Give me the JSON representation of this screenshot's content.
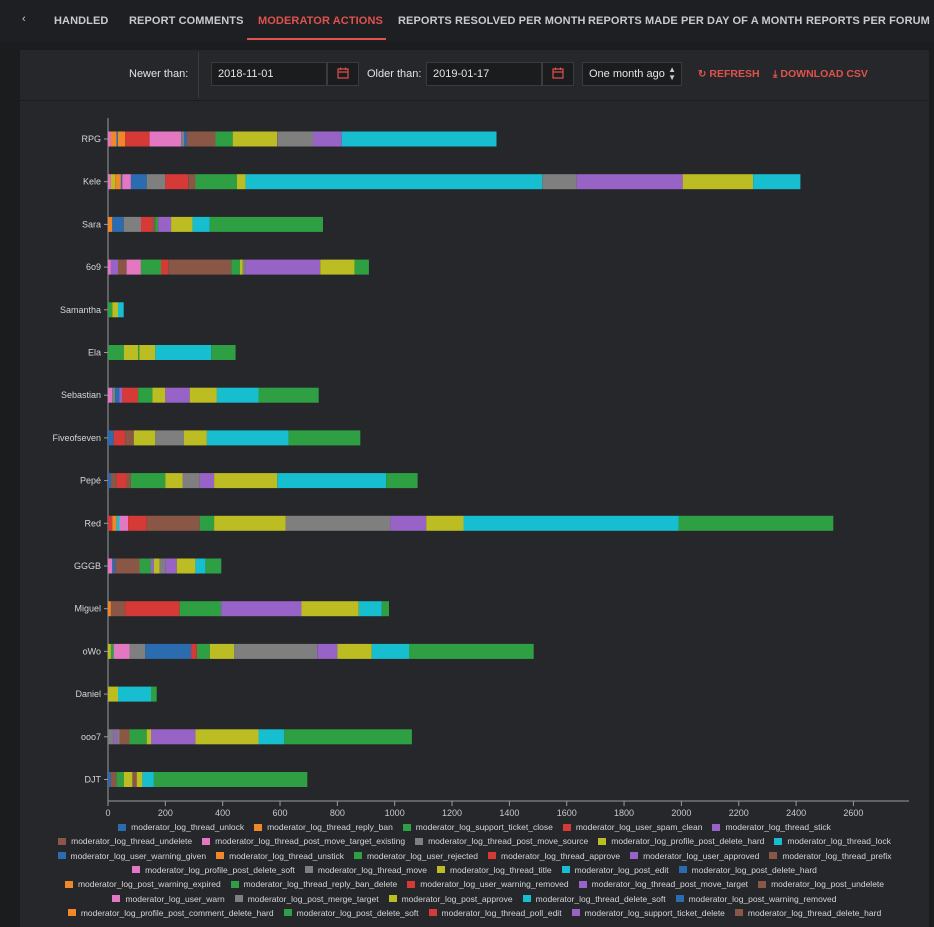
{
  "tabs": {
    "scroll_left": "‹",
    "items": [
      {
        "label": "HANDLED",
        "active": false
      },
      {
        "label": "REPORT COMMENTS",
        "active": false
      },
      {
        "label": "MODERATOR ACTIONS",
        "active": true
      },
      {
        "label": "REPORTS RESOLVED PER MONTH",
        "active": false
      },
      {
        "label": "REPORTS MADE PER DAY OF A MONTH",
        "active": false
      },
      {
        "label": "REPORTS PER FORUM",
        "active": false
      }
    ]
  },
  "filters": {
    "newer_label": "Newer than:",
    "newer_value": "2018-11-01",
    "older_label": "Older than:",
    "older_value": "2019-01-17",
    "range_value": "One month ago",
    "refresh_label": "REFRESH",
    "download_label": "DOWNLOAD CSV"
  },
  "colors": {
    "accent": "#e0524d",
    "background": "#1b1c1e",
    "panel": "#26272a"
  },
  "icons": [
    "calendar-icon",
    "refresh-icon",
    "download-icon",
    "chevron-left-icon",
    "caret-icon"
  ],
  "chart_data": {
    "type": "bar",
    "orientation": "horizontal",
    "stacked": true,
    "xlim": [
      0,
      2800
    ],
    "xticks": [
      0,
      200,
      400,
      600,
      800,
      1000,
      1200,
      1400,
      1600,
      1800,
      2000,
      2200,
      2400,
      2600
    ],
    "grid": false,
    "legend_position": "bottom",
    "categories": [
      "RPG",
      "Kele",
      "Sara",
      "6o9",
      "Samantha",
      "Ela",
      "Sebastian",
      "Fiveofseven",
      "Pepé",
      "Red",
      "GGGB",
      "Miguel",
      "oWo",
      "Daniel",
      "ooo7",
      "DJT"
    ],
    "legend": [
      {
        "name": "moderator_log_thread_unlock",
        "color": "#2b6cb0"
      },
      {
        "name": "moderator_log_thread_reply_ban",
        "color": "#f0882a"
      },
      {
        "name": "moderator_log_support_ticket_close",
        "color": "#2ea043"
      },
      {
        "name": "moderator_log_user_spam_clean",
        "color": "#d63a36"
      },
      {
        "name": "moderator_log_thread_stick",
        "color": "#9863c6"
      },
      {
        "name": "moderator_log_thread_undelete",
        "color": "#8a5747"
      },
      {
        "name": "moderator_log_thread_post_move_target_existing",
        "color": "#e377c2"
      },
      {
        "name": "moderator_log_thread_post_move_source",
        "color": "#7f7f7f"
      },
      {
        "name": "moderator_log_profile_post_delete_hard",
        "color": "#bcbd22"
      },
      {
        "name": "moderator_log_thread_lock",
        "color": "#17becf"
      },
      {
        "name": "moderator_log_user_warning_given",
        "color": "#2b6cb0"
      },
      {
        "name": "moderator_log_thread_unstick",
        "color": "#f0882a"
      },
      {
        "name": "moderator_log_user_rejected",
        "color": "#2ea043"
      },
      {
        "name": "moderator_log_thread_approve",
        "color": "#d63a36"
      },
      {
        "name": "moderator_log_user_approved",
        "color": "#9863c6"
      },
      {
        "name": "moderator_log_thread_prefix",
        "color": "#8a5747"
      },
      {
        "name": "moderator_log_profile_post_delete_soft",
        "color": "#e377c2"
      },
      {
        "name": "moderator_log_thread_move",
        "color": "#7f7f7f"
      },
      {
        "name": "moderator_log_thread_title",
        "color": "#bcbd22"
      },
      {
        "name": "moderator_log_post_edit",
        "color": "#17becf"
      },
      {
        "name": "moderator_log_post_delete_hard",
        "color": "#2b6cb0"
      },
      {
        "name": "moderator_log_post_warning_expired",
        "color": "#f0882a"
      },
      {
        "name": "moderator_log_thread_reply_ban_delete",
        "color": "#2ea043"
      },
      {
        "name": "moderator_log_user_warning_removed",
        "color": "#d63a36"
      },
      {
        "name": "moderator_log_thread_post_move_target",
        "color": "#9863c6"
      },
      {
        "name": "moderator_log_post_undelete",
        "color": "#8a5747"
      },
      {
        "name": "moderator_log_user_warn",
        "color": "#e377c2"
      },
      {
        "name": "moderator_log_post_merge_target",
        "color": "#7f7f7f"
      },
      {
        "name": "moderator_log_post_approve",
        "color": "#bcbd22"
      },
      {
        "name": "moderator_log_thread_delete_soft",
        "color": "#17becf"
      },
      {
        "name": "moderator_log_post_warning_removed",
        "color": "#2b6cb0"
      },
      {
        "name": "moderator_log_profile_post_comment_delete_hard",
        "color": "#f0882a"
      },
      {
        "name": "moderator_log_post_delete_soft",
        "color": "#2ea043"
      },
      {
        "name": "moderator_log_thread_poll_edit",
        "color": "#d63a36"
      },
      {
        "name": "moderator_log_support_ticket_delete",
        "color": "#9863c6"
      },
      {
        "name": "moderator_log_thread_delete_hard",
        "color": "#8a5747"
      }
    ],
    "stacks": [
      [
        [
          "#e377c2",
          10
        ],
        [
          "#f0882a",
          20
        ],
        [
          "#2b6cb0",
          5
        ],
        [
          "#f0882a",
          25
        ],
        [
          "#d63a36",
          85
        ],
        [
          "#e377c2",
          110
        ],
        [
          "#7f7f7f",
          10
        ],
        [
          "#2b6cb0",
          10
        ],
        [
          "#8a5747",
          100
        ],
        [
          "#2ea043",
          60
        ],
        [
          "#bcbd22",
          155
        ],
        [
          "#7f7f7f",
          125
        ],
        [
          "#9863c6",
          100
        ],
        [
          "#17becf",
          540
        ]
      ],
      [
        [
          "#e377c2",
          10
        ],
        [
          "#bcbd22",
          15
        ],
        [
          "#f0882a",
          20
        ],
        [
          "#2b6cb0",
          5
        ],
        [
          "#e377c2",
          30
        ],
        [
          "#2b6cb0",
          55
        ],
        [
          "#7f7f7f",
          65
        ],
        [
          "#d63a36",
          80
        ],
        [
          "#8a5747",
          25
        ],
        [
          "#2ea043",
          145
        ],
        [
          "#bcbd22",
          30
        ],
        [
          "#17becf",
          1035
        ],
        [
          "#7f7f7f",
          120
        ],
        [
          "#9863c6",
          370
        ],
        [
          "#bcbd22",
          245
        ],
        [
          "#17becf",
          165
        ]
      ],
      [
        [
          "#f0882a",
          15
        ],
        [
          "#2b6cb0",
          40
        ],
        [
          "#7f7f7f",
          60
        ],
        [
          "#d63a36",
          40
        ],
        [
          "#8a5747",
          10
        ],
        [
          "#2ea043",
          10
        ],
        [
          "#9863c6",
          45
        ],
        [
          "#bcbd22",
          75
        ],
        [
          "#17becf",
          60
        ],
        [
          "#2ea043",
          395
        ]
      ],
      [
        [
          "#e377c2",
          10
        ],
        [
          "#9863c6",
          25
        ],
        [
          "#8a5747",
          30
        ],
        [
          "#e377c2",
          50
        ],
        [
          "#2ea043",
          70
        ],
        [
          "#d63a36",
          25
        ],
        [
          "#8a5747",
          220
        ],
        [
          "#2ea043",
          30
        ],
        [
          "#bcbd22",
          10
        ],
        [
          "#7f7f7f",
          10
        ],
        [
          "#9863c6",
          260
        ],
        [
          "#bcbd22",
          120
        ],
        [
          "#2ea043",
          50
        ]
      ],
      [
        [
          "#2ea043",
          15
        ],
        [
          "#bcbd22",
          20
        ],
        [
          "#17becf",
          20
        ]
      ],
      [
        [
          "#2ea043",
          55
        ],
        [
          "#bcbd22",
          50
        ],
        [
          "#2ea043",
          5
        ],
        [
          "#bcbd22",
          55
        ],
        [
          "#17becf",
          195
        ],
        [
          "#2ea043",
          85
        ]
      ],
      [
        [
          "#e377c2",
          15
        ],
        [
          "#7f7f7f",
          10
        ],
        [
          "#2b6cb0",
          15
        ],
        [
          "#9863c6",
          10
        ],
        [
          "#d63a36",
          55
        ],
        [
          "#2ea043",
          50
        ],
        [
          "#bcbd22",
          45
        ],
        [
          "#9863c6",
          85
        ],
        [
          "#bcbd22",
          95
        ],
        [
          "#17becf",
          145
        ],
        [
          "#2ea043",
          210
        ]
      ],
      [
        [
          "#2b6cb0",
          20
        ],
        [
          "#d63a36",
          40
        ],
        [
          "#8a5747",
          30
        ],
        [
          "#bcbd22",
          75
        ],
        [
          "#7f7f7f",
          100
        ],
        [
          "#bcbd22",
          80
        ],
        [
          "#17becf",
          285
        ],
        [
          "#2ea043",
          250
        ]
      ],
      [
        [
          "#2b6cb0",
          10
        ],
        [
          "#8a5747",
          20
        ],
        [
          "#d63a36",
          35
        ],
        [
          "#8a5747",
          15
        ],
        [
          "#2ea043",
          120
        ],
        [
          "#bcbd22",
          60
        ],
        [
          "#7f7f7f",
          60
        ],
        [
          "#9863c6",
          50
        ],
        [
          "#bcbd22",
          220
        ],
        [
          "#17becf",
          380
        ],
        [
          "#2ea043",
          110
        ]
      ],
      [
        [
          "#d63a36",
          15
        ],
        [
          "#f0882a",
          15
        ],
        [
          "#17becf",
          10
        ],
        [
          "#e377c2",
          30
        ],
        [
          "#d63a36",
          65
        ],
        [
          "#8a5747",
          185
        ],
        [
          "#2ea043",
          50
        ],
        [
          "#bcbd22",
          250
        ],
        [
          "#7f7f7f",
          365
        ],
        [
          "#9863c6",
          125
        ],
        [
          "#bcbd22",
          130
        ],
        [
          "#17becf",
          750
        ],
        [
          "#2ea043",
          540
        ]
      ],
      [
        [
          "#e377c2",
          15
        ],
        [
          "#2b6cb0",
          10
        ],
        [
          "#8a5747",
          85
        ],
        [
          "#2ea043",
          40
        ],
        [
          "#9863c6",
          10
        ],
        [
          "#bcbd22",
          20
        ],
        [
          "#7f7f7f",
          20
        ],
        [
          "#9863c6",
          40
        ],
        [
          "#bcbd22",
          65
        ],
        [
          "#17becf",
          35
        ],
        [
          "#2ea043",
          55
        ]
      ],
      [
        [
          "#f0882a",
          10
        ],
        [
          "#8a5747",
          50
        ],
        [
          "#d63a36",
          190
        ],
        [
          "#2ea043",
          145
        ],
        [
          "#9863c6",
          15
        ],
        [
          "#9863c6",
          265
        ],
        [
          "#bcbd22",
          200
        ],
        [
          "#17becf",
          80
        ],
        [
          "#2ea043",
          25
        ]
      ],
      [
        [
          "#bcbd22",
          10
        ],
        [
          "#2ea043",
          10
        ],
        [
          "#e377c2",
          55
        ],
        [
          "#7f7f7f",
          55
        ],
        [
          "#2b6cb0",
          160
        ],
        [
          "#d63a36",
          20
        ],
        [
          "#2ea043",
          45
        ],
        [
          "#bcbd22",
          85
        ],
        [
          "#7f7f7f",
          290
        ],
        [
          "#9863c6",
          70
        ],
        [
          "#bcbd22",
          120
        ],
        [
          "#17becf",
          130
        ],
        [
          "#2ea043",
          435
        ]
      ],
      [
        [
          "#bcbd22",
          35
        ],
        [
          "#17becf",
          115
        ],
        [
          "#2ea043",
          20
        ]
      ],
      [
        [
          "#7f7f7f",
          20
        ],
        [
          "#9863c6",
          10
        ],
        [
          "#7f7f7f",
          10
        ],
        [
          "#8a5747",
          35
        ],
        [
          "#2ea043",
          60
        ],
        [
          "#bcbd22",
          15
        ],
        [
          "#9863c6",
          155
        ],
        [
          "#bcbd22",
          220
        ],
        [
          "#17becf",
          90
        ],
        [
          "#2ea043",
          445
        ]
      ],
      [
        [
          "#2b6cb0",
          10
        ],
        [
          "#8a5747",
          20
        ],
        [
          "#2ea043",
          25
        ],
        [
          "#bcbd22",
          30
        ],
        [
          "#8a5747",
          15
        ],
        [
          "#bcbd22",
          20
        ],
        [
          "#17becf",
          40
        ],
        [
          "#2ea043",
          535
        ]
      ]
    ]
  }
}
